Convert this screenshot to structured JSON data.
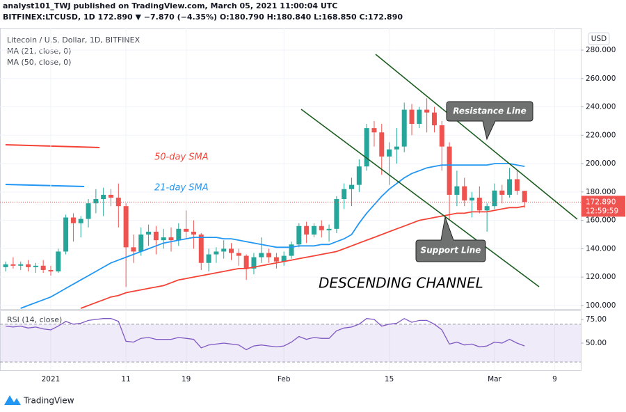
{
  "header": {
    "published": "analyst101_TWJ published on TradingView.com, March 05, 2021 11:00:04 UTC",
    "symbol": "BITFINEX:LTCUSD, 1D 172.890 ▼ −7.870 (−4.35%) O:180.790 H:180.840 L:168.850 C:172.890"
  },
  "chart_data": {
    "type": "candlestick",
    "title": "Litecoin / U.S. Dollar, 1D, BITFINEX",
    "currency": "USD",
    "up_color": "#26a69a",
    "down_color": "#ef5350",
    "grid": true,
    "xlim": [
      -0.75,
      76.47
    ],
    "xticks": [
      {
        "value": 6,
        "label": "2021"
      },
      {
        "value": 16,
        "label": "11"
      },
      {
        "value": 24,
        "label": "19"
      },
      {
        "value": 37,
        "label": "Feb"
      },
      {
        "value": 51,
        "label": "15"
      },
      {
        "value": 65,
        "label": "Mar"
      },
      {
        "value": 73,
        "label": "9"
      }
    ],
    "ylim": [
      97.5,
      295.7
    ],
    "yticks": [
      {
        "value": 100,
        "label": "100.000"
      },
      {
        "value": 120,
        "label": "120.000"
      },
      {
        "value": 140,
        "label": "140.000"
      },
      {
        "value": 160,
        "label": "160.000"
      },
      {
        "value": 180,
        "label": "180.000"
      },
      {
        "value": 200,
        "label": "200.000"
      },
      {
        "value": 220,
        "label": "220.000"
      },
      {
        "value": 240,
        "label": "240.000"
      },
      {
        "value": 260,
        "label": "260.000"
      },
      {
        "value": 280,
        "label": "280.000"
      }
    ],
    "open": [
      127,
      129,
      128,
      129,
      127,
      128,
      125,
      124,
      138,
      162,
      158,
      161,
      172,
      175,
      178,
      176,
      170,
      141,
      138,
      150,
      152,
      146,
      148,
      146,
      154,
      152,
      150,
      130,
      136,
      138,
      140,
      137,
      135,
      126,
      134,
      137,
      134,
      131,
      135,
      143,
      156,
      150,
      156,
      153,
      154,
      175,
      182,
      185,
      198,
      225,
      222,
      205,
      210,
      212,
      238,
      228,
      238,
      236,
      227,
      212,
      178,
      184,
      174,
      176,
      167,
      170,
      181,
      178,
      189,
      180.79
    ],
    "high": [
      131,
      134,
      131,
      132,
      130,
      132,
      128,
      140,
      164,
      165,
      163,
      175,
      182,
      183,
      182,
      186,
      172,
      150,
      155,
      157,
      156,
      154,
      155,
      158,
      167,
      160,
      151,
      140,
      141,
      146,
      144,
      140,
      136,
      137,
      148,
      140,
      137,
      138,
      145,
      158,
      159,
      158,
      160,
      157,
      177,
      186,
      190,
      203,
      228,
      230,
      228,
      215,
      225,
      243,
      242,
      240,
      246,
      240,
      230,
      215,
      195,
      190,
      180,
      184,
      172,
      186,
      185,
      197,
      195,
      180.84
    ],
    "low": [
      124,
      126,
      125,
      124,
      123,
      123,
      121,
      123,
      136,
      145,
      148,
      155,
      165,
      163,
      170,
      155,
      113,
      130,
      135,
      142,
      136,
      140,
      138,
      142,
      147,
      140,
      125,
      124,
      130,
      133,
      132,
      128,
      118,
      122,
      130,
      130,
      126,
      128,
      133,
      141,
      144,
      148,
      148,
      145,
      151,
      168,
      170,
      180,
      195,
      212,
      192,
      185,
      200,
      208,
      220,
      225,
      222,
      222,
      195,
      160,
      170,
      170,
      162,
      165,
      152,
      168,
      172,
      176,
      178,
      168.85
    ],
    "close": [
      129,
      128,
      129,
      127,
      128,
      125,
      124,
      138,
      162,
      158,
      161,
      172,
      175,
      178,
      176,
      170,
      141,
      138,
      150,
      152,
      146,
      148,
      146,
      154,
      152,
      150,
      130,
      136,
      138,
      140,
      137,
      135,
      126,
      134,
      137,
      134,
      131,
      135,
      143,
      156,
      150,
      156,
      153,
      154,
      175,
      182,
      185,
      198,
      225,
      222,
      205,
      210,
      212,
      238,
      228,
      238,
      236,
      227,
      212,
      178,
      184,
      174,
      176,
      167,
      170,
      181,
      178,
      189,
      180.79,
      172.89
    ],
    "last_price_label": "172.890",
    "countdown": "12:59:59",
    "series": [
      {
        "name": "MA (21, close, 0)",
        "color": "#2196f3",
        "label": "21-day SMA",
        "values": [
          null,
          null,
          98,
          100,
          102,
          104,
          106,
          109,
          112,
          115,
          118,
          121,
          124,
          127,
          130,
          132,
          134,
          136,
          138,
          140,
          142,
          144,
          145,
          146,
          147,
          148,
          148,
          148,
          148,
          147,
          147,
          146,
          145,
          144,
          143,
          142,
          141,
          141,
          141,
          142,
          142,
          142,
          143,
          143,
          145,
          147,
          150,
          158,
          165,
          171,
          177,
          182,
          186,
          190,
          193,
          195,
          197,
          198,
          199,
          199,
          199,
          199,
          199,
          199,
          199,
          200,
          200,
          200,
          199,
          198
        ]
      },
      {
        "name": "MA (50, close, 0)",
        "color": "#f44336",
        "label": "50-day SMA",
        "values": [
          null,
          null,
          null,
          null,
          null,
          null,
          null,
          null,
          null,
          null,
          98,
          100,
          102,
          104,
          106,
          107,
          109,
          110,
          111,
          112,
          113,
          114,
          116,
          118,
          119,
          120,
          121,
          122,
          123,
          124,
          125,
          126,
          126,
          127,
          128,
          129,
          130,
          131,
          132,
          133,
          134,
          135,
          136,
          137,
          138,
          140,
          142,
          144,
          146,
          148,
          150,
          152,
          154,
          156,
          158,
          160,
          161,
          162,
          163,
          164,
          165,
          165,
          166,
          166,
          166,
          167,
          168,
          169,
          169,
          170
        ]
      }
    ],
    "annotations": {
      "resistance": "Resistance Line",
      "support": "Support Line",
      "channel": "DESCENDING CHANNEL"
    },
    "rsi": {
      "title": "RSI (14, close)",
      "color": "#7e57c2",
      "ylim": [
        21.3,
        84.6
      ],
      "yticks": [
        {
          "value": 50,
          "label": "50.00"
        },
        {
          "value": 75,
          "label": "75.00"
        }
      ],
      "band": [
        30,
        70
      ],
      "values": [
        68,
        67,
        68,
        66,
        67,
        65,
        64,
        68,
        73,
        70,
        71,
        74,
        75,
        76,
        76,
        73,
        52,
        51,
        55,
        56,
        54,
        54,
        54,
        56,
        55,
        54,
        45,
        48,
        49,
        50,
        49,
        48,
        43,
        47,
        48,
        47,
        46,
        47,
        51,
        57,
        54,
        56,
        55,
        55,
        63,
        66,
        67,
        70,
        76,
        75,
        68,
        70,
        71,
        76,
        72,
        74,
        74,
        70,
        64,
        49,
        51,
        48,
        49,
        46,
        47,
        51,
        50,
        54,
        50,
        47
      ]
    },
    "logo": "TradingView"
  }
}
